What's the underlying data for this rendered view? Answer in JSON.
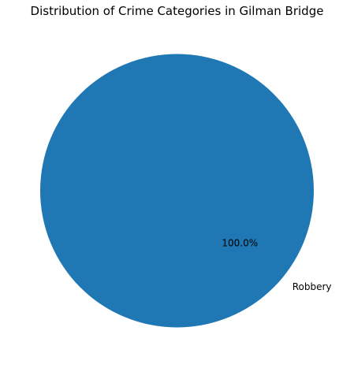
{
  "chart_data": {
    "type": "pie",
    "title": "Distribution of Crime Categories in Gilman Bridge",
    "categories": [
      "Robbery"
    ],
    "values": [
      100.0
    ],
    "percent_labels": [
      "100.0%"
    ],
    "colors": [
      "#1f77b4"
    ]
  }
}
